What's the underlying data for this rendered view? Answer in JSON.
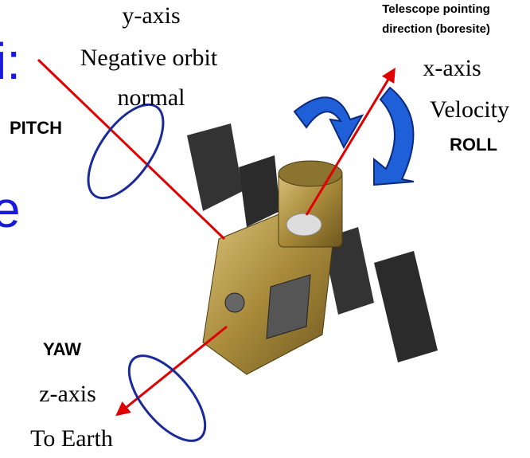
{
  "slide_fragments": [
    "i:",
    "e"
  ],
  "labels": {
    "y_axis": [
      "y-axis",
      "Negative orbit",
      "normal"
    ],
    "pitch": "PITCH",
    "telescope": [
      "Telescope pointing",
      "direction (boresite)"
    ],
    "x_axis": [
      "x-axis",
      "Velocity"
    ],
    "roll": "ROLL",
    "yaw": "YAW",
    "z_axis": [
      "z-axis",
      "To Earth"
    ]
  }
}
